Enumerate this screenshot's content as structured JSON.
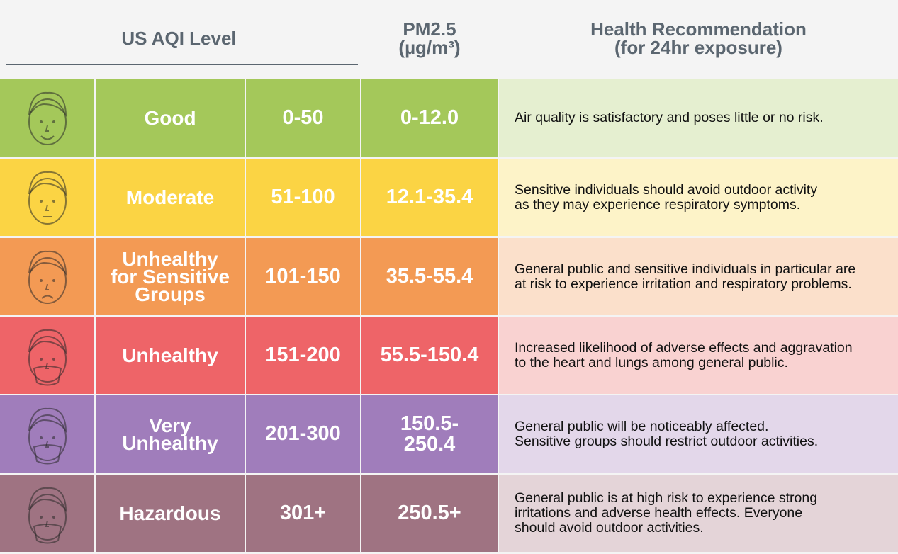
{
  "header": {
    "level": "US AQI Level",
    "pm25": "PM2.5\n(µg/m³)",
    "recommendation": "Health Recommendation\n(for 24hr exposure)"
  },
  "rows": [
    {
      "level": "Good",
      "aqi": "0-50",
      "pm25": "0-12.0",
      "recommendation": "Air quality is satisfactory and poses little or no risk."
    },
    {
      "level": "Moderate",
      "aqi": "51-100",
      "pm25": "12.1-35.4",
      "recommendation": "Sensitive individuals should avoid outdoor activity\nas they may experience respiratory symptoms."
    },
    {
      "level": "Unhealthy\nfor Sensitive\nGroups",
      "aqi": "101-150",
      "pm25": "35.5-55.4",
      "recommendation": "General public and sensitive individuals in particular are\nat risk to experience irritation and respiratory problems."
    },
    {
      "level": "Unhealthy",
      "aqi": "151-200",
      "pm25": "55.5-150.4",
      "recommendation": "Increased likelihood of adverse effects and aggravation\nto the heart and lungs among general public."
    },
    {
      "level": "Very\nUnhealthy",
      "aqi": "201-300",
      "pm25": "150.5-\n250.4",
      "recommendation": "General public will be noticeably affected.\nSensitive groups should restrict outdoor activities."
    },
    {
      "level": "Hazardous",
      "aqi": "301+",
      "pm25": "250.5+",
      "recommendation": "General public is at high risk to experience strong\nirritations and adverse health effects. Everyone\nshould avoid outdoor activities."
    }
  ]
}
